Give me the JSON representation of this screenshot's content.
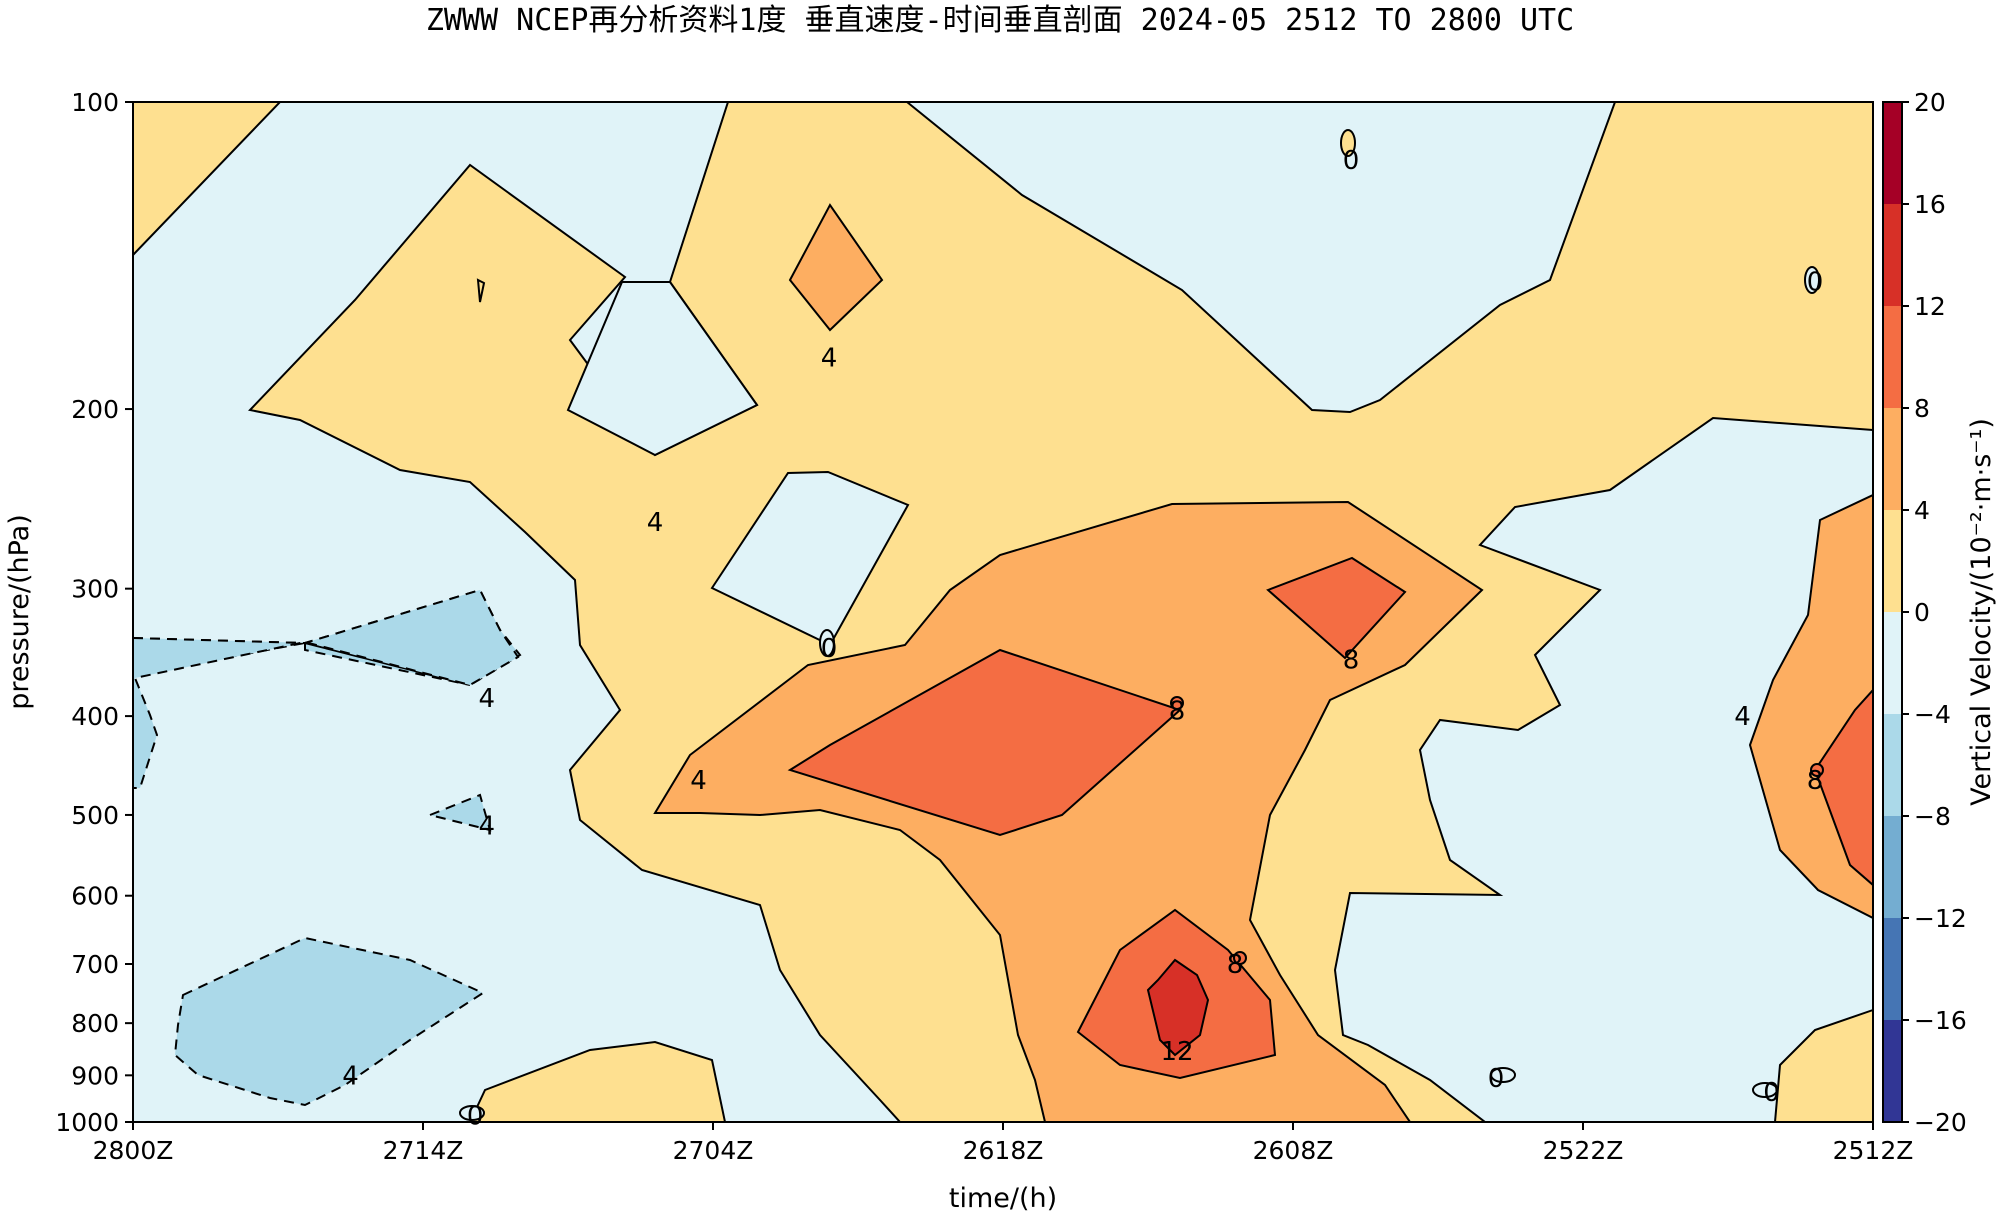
{
  "chart_data": {
    "type": "contour",
    "title": "ZWWW NCEP再分析资料1度 垂直速度-时间垂直剖面 2024-05 2512 TO 2800 UTC",
    "xlabel": "time/(h)",
    "ylabel": "pressure/(hPa)",
    "x_tick_labels": [
      "2800Z",
      "2714Z",
      "2704Z",
      "2618Z",
      "2608Z",
      "2522Z",
      "2512Z"
    ],
    "y_tick_labels": [
      "100",
      "200",
      "300",
      "400",
      "500",
      "600",
      "700",
      "800",
      "900",
      "1000"
    ],
    "y_tick_values": [
      100,
      200,
      300,
      400,
      500,
      600,
      700,
      800,
      900,
      1000
    ],
    "y_scale": "log",
    "y_range": [
      1000,
      100
    ],
    "x_range_hours": [
      0,
      60
    ],
    "colorbar": {
      "label": "Vertical Velocity/(10⁻²·m·s⁻¹)",
      "levels": [
        -20,
        -16,
        -12,
        -8,
        -4,
        0,
        4,
        8,
        12,
        16,
        20
      ],
      "tick_labels": [
        "−20",
        "−16",
        "−12",
        "−8",
        "−4",
        "0",
        "4",
        "8",
        "12",
        "16",
        "20"
      ],
      "colors": [
        "#313695",
        "#4575b4",
        "#74add1",
        "#abd9e9",
        "#e0f3f8",
        "#fee090",
        "#fdae61",
        "#f46d43",
        "#d73027",
        "#a50026"
      ]
    },
    "contour_labels": [
      {
        "text": "4",
        "x": 24.0,
        "p": 178
      },
      {
        "text": "4",
        "x": 18.0,
        "p": 258
      },
      {
        "text": "4",
        "x": 12.2,
        "p": 384
      },
      {
        "text": "4",
        "x": 12.2,
        "p": 512
      },
      {
        "text": "4",
        "x": 7.5,
        "p": 900
      },
      {
        "text": "4",
        "x": 19.5,
        "p": 462
      },
      {
        "text": "0",
        "x": 24.0,
        "p": 343
      },
      {
        "text": "0",
        "x": 42.0,
        "p": 114
      },
      {
        "text": "0",
        "x": 58.0,
        "p": 150
      },
      {
        "text": "0",
        "x": 47.0,
        "p": 905
      },
      {
        "text": "0",
        "x": 56.5,
        "p": 935
      },
      {
        "text": "0",
        "x": 11.8,
        "p": 985
      },
      {
        "text": "8",
        "x": 36.0,
        "p": 395
      },
      {
        "text": "8",
        "x": 42.0,
        "p": 352
      },
      {
        "text": "8",
        "x": 38.0,
        "p": 700
      },
      {
        "text": "8",
        "x": 58.0,
        "p": 462
      },
      {
        "text": "12",
        "x": 36.0,
        "p": 852
      },
      {
        "text": "4",
        "x": 55.5,
        "p": 400
      }
    ],
    "grid": false,
    "legend": "colorbar-right"
  }
}
